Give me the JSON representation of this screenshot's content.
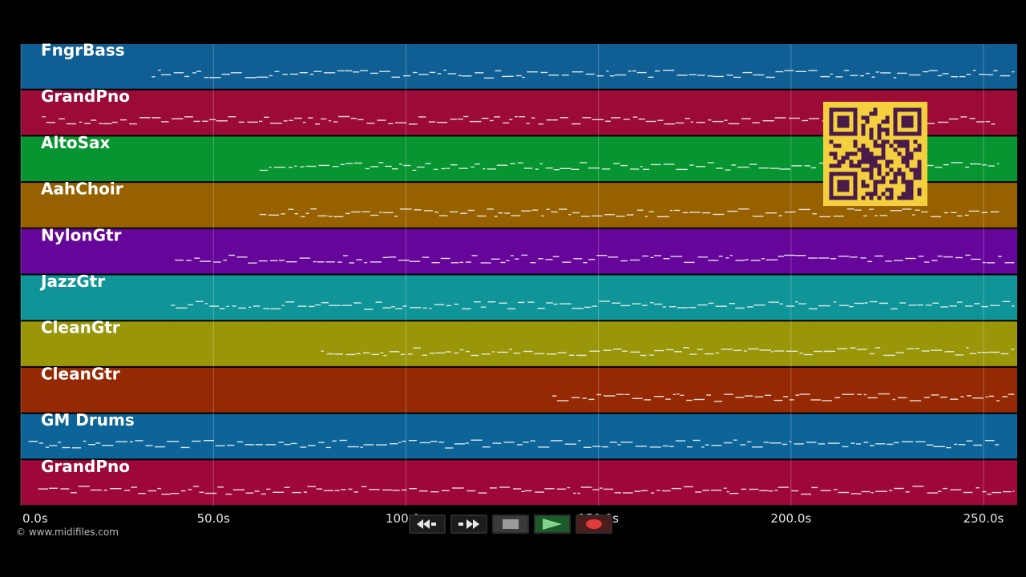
{
  "app": {
    "copyright": "© www.midifiles.com"
  },
  "colors": {
    "background": "#000000",
    "notes": "#f2f2f2",
    "gridline": "#ffffff",
    "qr_bg": "#f4d03f",
    "qr_fg": "#4a1a4a"
  },
  "tracks": [
    {
      "name": "FngrBass",
      "color": "#0f5f94",
      "start": 34,
      "end": 258
    },
    {
      "name": "GrandPno",
      "color": "#9c0a38",
      "start": 5.5,
      "end": 253
    },
    {
      "name": "AltoSax",
      "color": "#069530",
      "start": 62,
      "end": 254
    },
    {
      "name": "AahChoir",
      "color": "#976100",
      "start": 62,
      "end": 254
    },
    {
      "name": "NylonGtr",
      "color": "#66059a",
      "start": 40,
      "end": 258
    },
    {
      "name": "JazzGtr",
      "color": "#0f9598",
      "start": 39,
      "end": 258
    },
    {
      "name": "CleanGtr",
      "color": "#9a960a",
      "start": 78,
      "end": 258
    },
    {
      "name": "CleanGtr",
      "color": "#952903",
      "start": 138,
      "end": 258
    },
    {
      "name": "GM Drums",
      "color": "#0d6498",
      "start": 2,
      "end": 254
    },
    {
      "name": "GrandPno",
      "color": "#9d0839",
      "start": 4.5,
      "end": 258
    }
  ],
  "timeline": {
    "ticks": [
      "0.0s",
      "50.0s",
      "100.0s",
      "150.0s",
      "200.0s",
      "250.0s"
    ],
    "max_seconds": 258
  },
  "transport": {
    "buttons": [
      {
        "name": "rewind-button",
        "icon": "rewind-icon"
      },
      {
        "name": "fast-forward-button",
        "icon": "fast-forward-icon"
      },
      {
        "name": "stop-button",
        "icon": "stop-icon"
      },
      {
        "name": "play-button",
        "icon": "play-icon"
      },
      {
        "name": "record-button",
        "icon": "record-icon"
      }
    ]
  },
  "overlay": {
    "qr_icon": "qr-code-icon"
  }
}
